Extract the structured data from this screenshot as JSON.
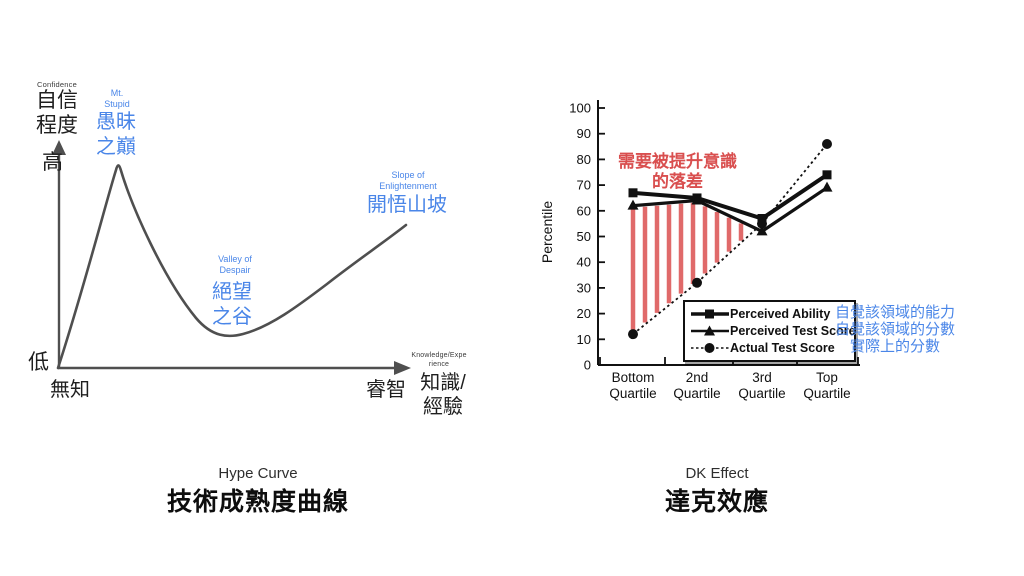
{
  "page": {
    "background": "#ffffff"
  },
  "colors": {
    "blue_label": "#4a86e8",
    "red_text": "#d94f4f",
    "hatch": "#e06a6a",
    "curve": "#4f4f4f",
    "ink": "#111111"
  },
  "hype": {
    "confidence_en": "Confidence",
    "confidence_zh": "自信\n程度",
    "high": "高",
    "low": "低",
    "ignorance": "無知",
    "wisdom": "睿智",
    "knowledge_en": "Knowledge/Expe\nrience",
    "knowledge_zh": "知識/\n經驗",
    "mt_stupid_en": "Mt.\nStupid",
    "mt_stupid_zh": "愚昧\n之巔",
    "valley_en": "Valley of\nDespair",
    "valley_zh": "絕望\n之谷",
    "slope_en": "Slope of\nEnlightenment",
    "slope_zh": "開悟山坡",
    "caption_en": "Hype Curve",
    "caption_zh": "技術成熟度曲線"
  },
  "dk": {
    "caption_en": "DK Effect",
    "caption_zh": "達克效應",
    "gap_label": "需要被提升意識\n的落差",
    "legend_translation": "自覺該領域的能力\n自覺該領域的分數\n實際上的分數"
  },
  "chart_data": [
    {
      "type": "line",
      "title": "Hype Curve 技術成熟度曲線",
      "qualitative": true,
      "ylabel": "Confidence 自信程度 (低→高)",
      "xlabel": "Knowledge/Experience 知識/經驗 (無知→睿智)",
      "annotations": [
        "Mt. Stupid 愚昧之巔 (peak)",
        "Valley of Despair 絕望之谷 (trough)",
        "Slope of Enlightenment 開悟山坡 (rising tail)"
      ]
    },
    {
      "type": "line",
      "title": "DK Effect 達克效應",
      "ylabel": "Percentile",
      "ylim": [
        0,
        100
      ],
      "ytick_step": 10,
      "grid": false,
      "legend_position": "lower right",
      "categories": [
        "Bottom\nQuartile",
        "2nd\nQuartile",
        "3rd\nQuartile",
        "Top\nQuartile"
      ],
      "series": [
        {
          "name": "Perceived Ability",
          "marker": "square",
          "dashed": false,
          "values": [
            67,
            65,
            57,
            74
          ]
        },
        {
          "name": "Perceived Test Score",
          "marker": "triangle",
          "dashed": false,
          "values": [
            62,
            64,
            52,
            69
          ]
        },
        {
          "name": "Actual Test Score",
          "marker": "circle",
          "dashed": true,
          "values": [
            12,
            32,
            55,
            86
          ]
        }
      ],
      "hatch_between": [
        "Perceived Test Score",
        "Actual Test Score"
      ]
    }
  ]
}
